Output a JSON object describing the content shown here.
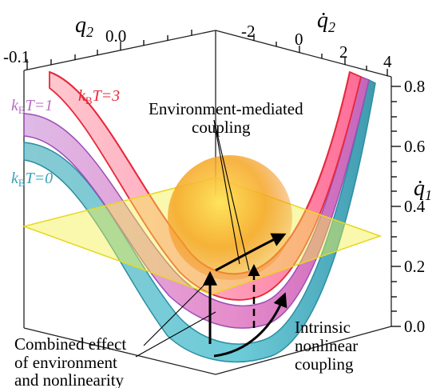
{
  "axes": {
    "q2_label": "q",
    "q2_sub": "2",
    "q2dot_label": "q̇",
    "q2dot_sub": "2",
    "q1dot_label": "q̇",
    "q1dot_sub": "1",
    "q2_ticks": [
      "-0.1",
      "0.0"
    ],
    "q2dot_ticks": [
      "-2",
      "0",
      "2",
      "4"
    ],
    "q1dot_ticks": [
      "0.8",
      "0.6",
      "0.4",
      "0.2",
      "0.0"
    ]
  },
  "curves": [
    {
      "k": "k",
      "B": "B",
      "eq": "T=3",
      "color": "#e8283a"
    },
    {
      "k": "k",
      "B": "B",
      "eq": "T=1",
      "color": "#b56fc2"
    },
    {
      "k": "k",
      "B": "B",
      "eq": "T=0",
      "color": "#3aa0b4"
    }
  ],
  "annotations": {
    "env_line1": "Environment-mediated",
    "env_line2": "coupling",
    "intr_line1": "Intrinsic",
    "intr_line2": "nonlinear",
    "intr_line3": "coupling",
    "comb_line1": "Combined effect",
    "comb_line2": "of  environment",
    "comb_line3": "and nonlinearity"
  },
  "colors": {
    "plane": "#f5f04a",
    "sphere": "#f2a21c"
  }
}
